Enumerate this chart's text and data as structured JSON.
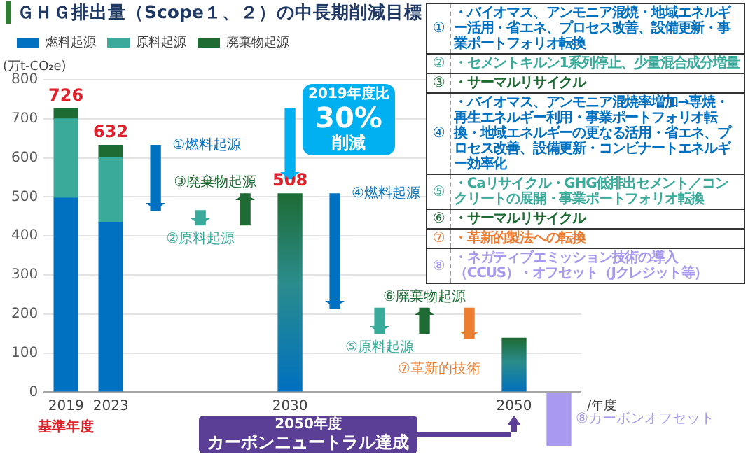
{
  "chart_data": {
    "type": "bar",
    "title": "ＧＨＧ排出量（Scope１、２）の中長期削減目標",
    "xlabel": "/年度",
    "ylabel": "(万t-CO₂e)",
    "categories": [
      "2019",
      "2023",
      null,
      null,
      null,
      "2030",
      null,
      null,
      null,
      null,
      "2050",
      null
    ],
    "stacked": true,
    "ylim": [
      -150,
      800
    ],
    "yticks": [
      0,
      100,
      200,
      300,
      400,
      500,
      600,
      700,
      800
    ],
    "grid": "y",
    "legend": "top left",
    "totals": [
      "726",
      "632",
      null,
      null,
      null,
      null,
      null,
      null,
      null,
      null,
      null,
      null
    ],
    "series": [
      {
        "name": "燃料起源",
        "color": "#0070c0",
        "values": [
          497,
          435,
          null,
          null,
          null,
          null,
          null,
          null,
          null,
          null,
          null,
          null
        ]
      },
      {
        "name": "原料起源",
        "color": "#3aab9a",
        "values": [
          203,
          165,
          null,
          null,
          null,
          null,
          null,
          null,
          null,
          null,
          null,
          null
        ]
      },
      {
        "name": "廃棄物起源",
        "color": "#1e6b34",
        "values": [
          26,
          32,
          null,
          null,
          null,
          null,
          null,
          null,
          null,
          null,
          null,
          null
        ]
      },
      {
        "color": "#2a8c8c",
        "values": [
          null,
          null,
          null,
          null,
          null,
          508,
          null,
          null,
          null,
          null,
          138,
          null
        ],
        "value_labels": [
          null,
          null,
          null,
          null,
          null,
          "508",
          null,
          null,
          null,
          null,
          null,
          null
        ]
      },
      {
        "name": "①燃料起源",
        "color": "#0070c0",
        "base": [
          null,
          null,
          632,
          null,
          null,
          null,
          null,
          null,
          null,
          null,
          null,
          null
        ],
        "values": [
          null,
          null,
          -167,
          null,
          null,
          null,
          null,
          null,
          null,
          null,
          null,
          null
        ]
      },
      {
        "name": "②原料起源",
        "color": "#3aab9a",
        "base": [
          null,
          null,
          null,
          465,
          null,
          null,
          null,
          null,
          null,
          null,
          null,
          null
        ],
        "values": [
          null,
          null,
          null,
          -37,
          null,
          null,
          null,
          null,
          null,
          null,
          null,
          null
        ]
      },
      {
        "name": "③廃棄物起源",
        "color": "#1e6b34",
        "base": [
          null,
          null,
          null,
          null,
          428,
          null,
          null,
          null,
          null,
          null,
          null,
          null
        ],
        "values": [
          null,
          null,
          null,
          null,
          80,
          null,
          null,
          null,
          null,
          null,
          null,
          null
        ]
      },
      {
        "color": "#00b0f0",
        "base": [
          null,
          null,
          null,
          null,
          null,
          726,
          null,
          null,
          null,
          null,
          null,
          null
        ],
        "values": [
          null,
          null,
          null,
          null,
          null,
          -180,
          null,
          null,
          null,
          null,
          null,
          null
        ]
      },
      {
        "name": "④燃料起源",
        "color": "#0070c0",
        "base": [
          null,
          null,
          null,
          null,
          null,
          null,
          508,
          null,
          null,
          null,
          null,
          null
        ],
        "values": [
          null,
          null,
          null,
          null,
          null,
          null,
          -293,
          null,
          null,
          null,
          null,
          null
        ]
      },
      {
        "name": "⑤原料起源",
        "color": "#3aab9a",
        "base": [
          null,
          null,
          null,
          null,
          null,
          null,
          null,
          215,
          null,
          null,
          null,
          null
        ],
        "values": [
          null,
          null,
          null,
          null,
          null,
          null,
          null,
          -65,
          null,
          null,
          null,
          null
        ]
      },
      {
        "name": "⑥廃棄物起源",
        "color": "#1e6b34",
        "base": [
          null,
          null,
          null,
          null,
          null,
          null,
          null,
          null,
          150,
          null,
          null,
          null
        ],
        "values": [
          null,
          null,
          null,
          null,
          null,
          null,
          null,
          null,
          65,
          null,
          null,
          null
        ]
      },
      {
        "name": "⑦革新的技術",
        "color": "#ed7d31",
        "base": [
          null,
          null,
          null,
          null,
          null,
          null,
          null,
          null,
          null,
          215,
          null,
          null
        ],
        "values": [
          null,
          null,
          null,
          null,
          null,
          null,
          null,
          null,
          null,
          -77,
          null,
          null
        ]
      },
      {
        "name": "⑧カーボンオフセット",
        "color": "#a99af0",
        "base": [
          null,
          null,
          null,
          null,
          null,
          null,
          null,
          null,
          null,
          null,
          null,
          0
        ],
        "values": [
          null,
          null,
          null,
          null,
          null,
          null,
          null,
          null,
          null,
          null,
          null,
          -138
        ]
      }
    ],
    "annotations": [
      "2019年度比",
      "30%",
      "削減",
      "基準年度",
      "2050年度",
      "カーボンニュートラル達成",
      "①",
      "・バイオマス、アンモニア混焼・地域エネルギー活用・省エネ、プロセス改善、設備更新・事業ポートフォリオ転換",
      "②",
      "・セメントキルン1系列停止、少量混合成分増量",
      "③",
      "・サーマルリサイクル",
      "④",
      "・バイオマス、アンモニア混焼率増加→専焼・再生エネルギー利用・事業ポートフォリオ転換・地域エネルギーの更なる活用・省エネ、プロセス改善、設備更新・コンビナートエネルギー効率化",
      "⑤",
      "・Caリサイクル・GHG低排出セメント／コンクリートの展開・事業ポートフォリオ転換",
      "⑥",
      "・サーマルリサイクル",
      "⑦",
      "・革新的製法への転換",
      "⑧",
      "・ネガティブエミッション技術の導入（CCUS）・オフセット（Jクレジット等）"
    ]
  }
}
